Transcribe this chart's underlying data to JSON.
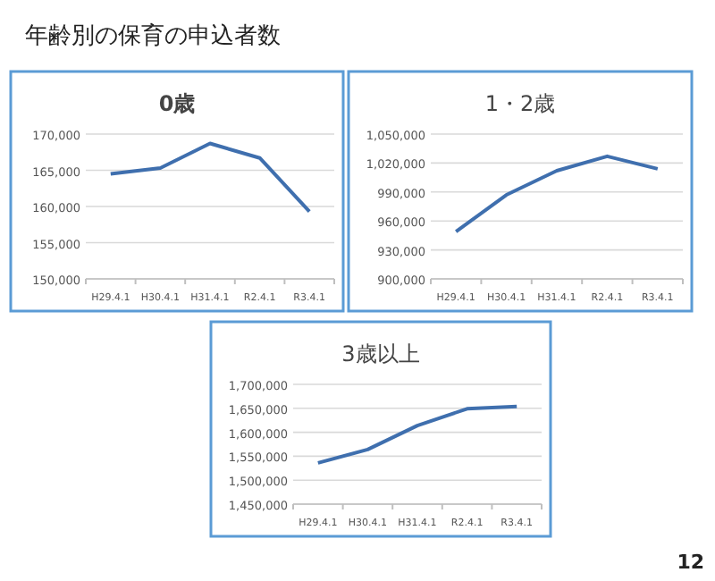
{
  "chart_data": [
    {
      "type": "line",
      "title": "0歳",
      "categories": [
        "H29.4.1",
        "H30.4.1",
        "H31.4.1",
        "R2.4.1",
        "R3.4.1"
      ],
      "series": [
        {
          "color": "#3f6fae",
          "values": [
            164500,
            165300,
            168700,
            166700,
            159300
          ]
        }
      ],
      "ylim": [
        150000,
        170000
      ],
      "yticks": [
        {
          "value": 150000,
          "label": "150,000"
        },
        {
          "value": 155000,
          "label": "155,000"
        },
        {
          "value": 160000,
          "label": "160,000"
        },
        {
          "value": 165000,
          "label": "165,000"
        },
        {
          "value": 170000,
          "label": "170,000"
        }
      ],
      "grid": "y",
      "marker": "none",
      "annotations": [
        "年齢別の保育の申込者数",
        "12"
      ]
    },
    {
      "type": "line",
      "title": "1・2歳",
      "categories": [
        "H29.4.1",
        "H30.4.1",
        "H31.4.1",
        "R2.4.1",
        "R3.4.1"
      ],
      "series": [
        {
          "color": "#3f6fae",
          "values": [
            949000,
            987000,
            1012000,
            1027000,
            1014000
          ]
        }
      ],
      "ylim": [
        900000,
        1050000
      ],
      "yticks": [
        {
          "value": 900000,
          "label": "900,000"
        },
        {
          "value": 930000,
          "label": "930,000"
        },
        {
          "value": 960000,
          "label": "960,000"
        },
        {
          "value": 990000,
          "label": "990,000"
        },
        {
          "value": 1020000,
          "label": "1,020,000"
        },
        {
          "value": 1050000,
          "label": "1,050,000"
        }
      ],
      "grid": "y",
      "marker": "none"
    },
    {
      "type": "line",
      "title": "3歳以上",
      "categories": [
        "H29.4.1",
        "H30.4.1",
        "H31.4.1",
        "R2.4.1",
        "R3.4.1"
      ],
      "series": [
        {
          "color": "#3f6fae",
          "values": [
            1536000,
            1564000,
            1614000,
            1649000,
            1654000
          ]
        }
      ],
      "ylim": [
        1450000,
        1700000
      ],
      "yticks": [
        {
          "value": 1450000,
          "label": "1,450,000"
        },
        {
          "value": 1500000,
          "label": "1,500,000"
        },
        {
          "value": 1550000,
          "label": "1,550,000"
        },
        {
          "value": 1600000,
          "label": "1,600,000"
        },
        {
          "value": 1650000,
          "label": "1,650,000"
        },
        {
          "value": 1700000,
          "label": "1,700,000"
        }
      ],
      "grid": "y",
      "marker": "none"
    }
  ]
}
